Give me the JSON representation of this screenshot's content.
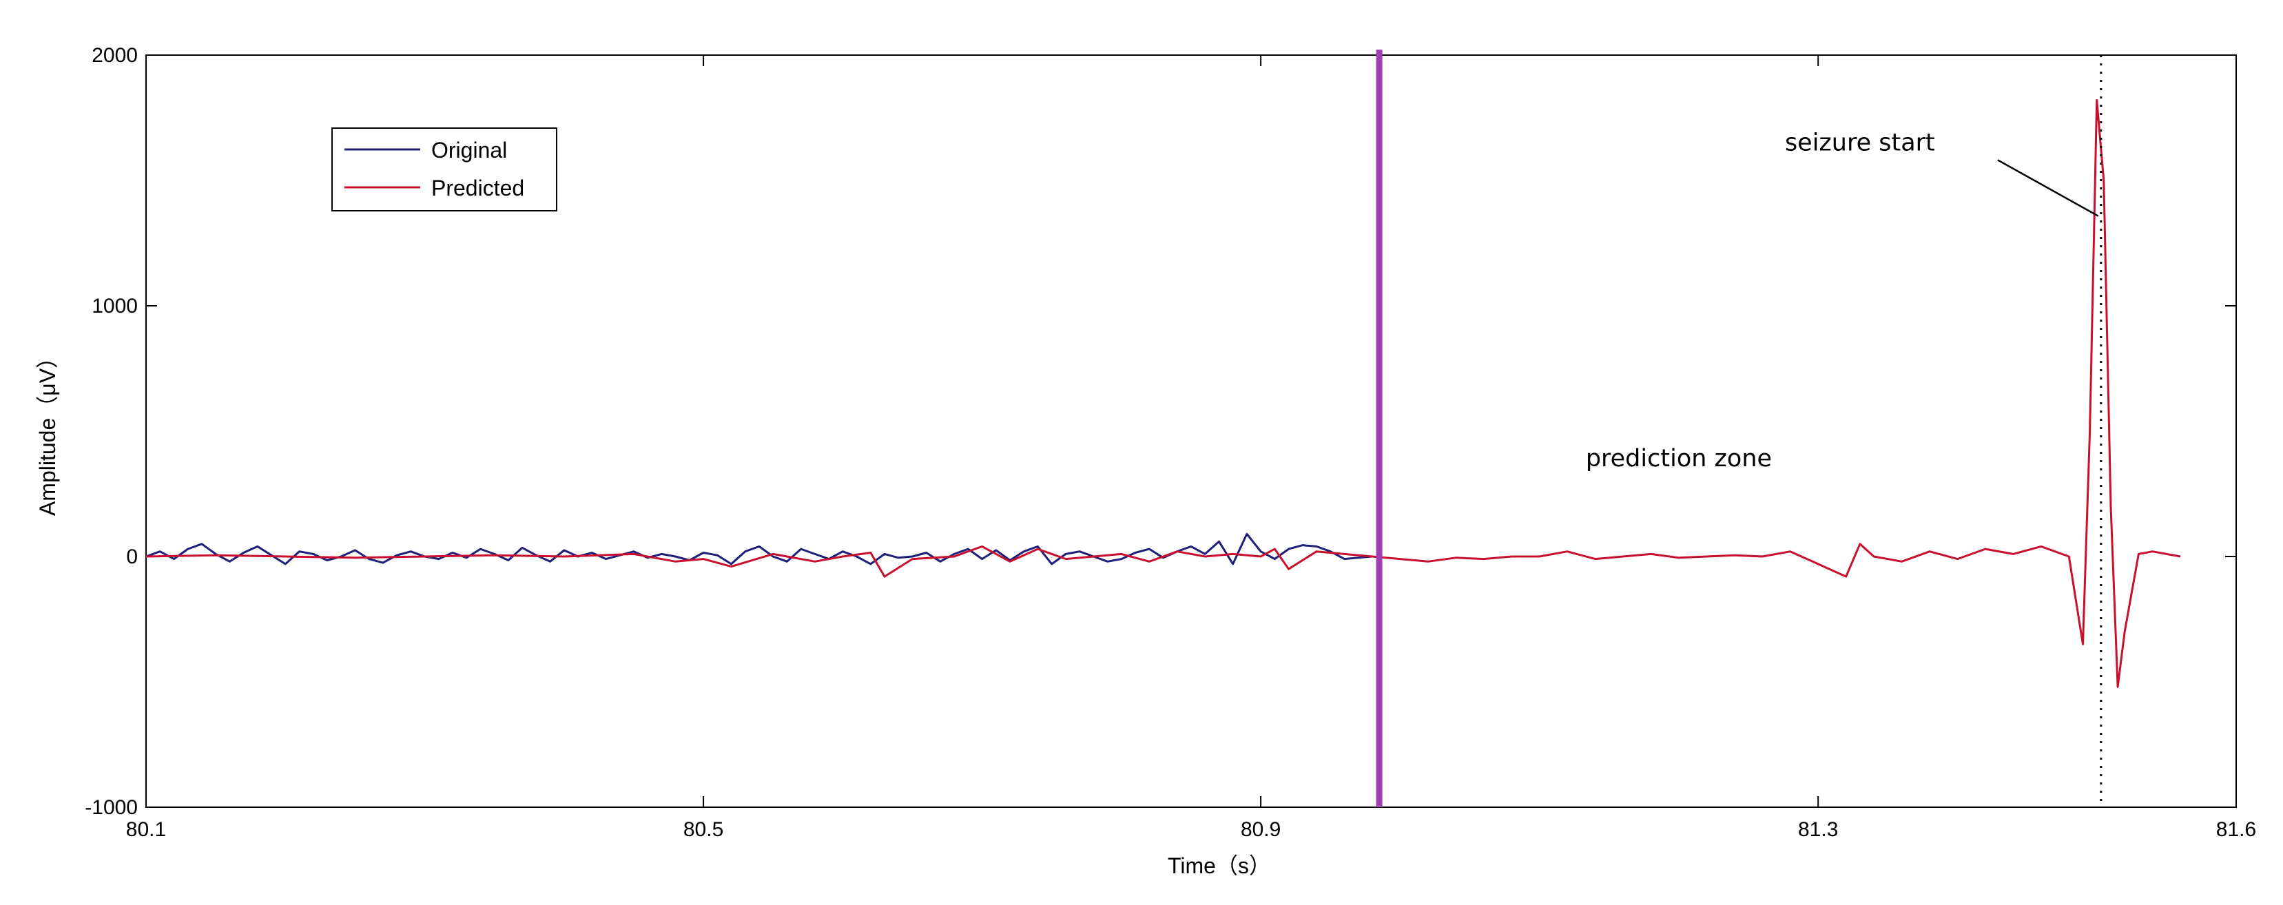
{
  "chart_data": {
    "type": "line",
    "xlabel": "Time（s）",
    "ylabel": "Amplitude（μV）",
    "xlim": [
      80.1,
      81.6
    ],
    "ylim": [
      -1000,
      2000
    ],
    "xticks": [
      80.1,
      80.5,
      80.9,
      81.3,
      81.6
    ],
    "xtick_labels": [
      "80.1",
      "80.5",
      "80.9",
      "81.3",
      "81.6"
    ],
    "yticks": [
      -1000,
      0,
      1000,
      2000
    ],
    "ytick_labels": [
      "-1000",
      "0",
      "1000",
      "2000"
    ],
    "grid": false,
    "legend_position": "top-left",
    "series": [
      {
        "name": "Original",
        "color": "#1f1f7a",
        "x": [
          80.1,
          80.11,
          80.12,
          80.13,
          80.14,
          80.15,
          80.16,
          80.17,
          80.18,
          80.19,
          80.2,
          80.21,
          80.22,
          80.23,
          80.24,
          80.25,
          80.26,
          80.27,
          80.28,
          80.29,
          80.3,
          80.31,
          80.32,
          80.33,
          80.34,
          80.35,
          80.36,
          80.37,
          80.38,
          80.39,
          80.4,
          80.41,
          80.42,
          80.43,
          80.44,
          80.45,
          80.46,
          80.47,
          80.48,
          80.49,
          80.5,
          80.51,
          80.52,
          80.53,
          80.54,
          80.55,
          80.56,
          80.57,
          80.58,
          80.59,
          80.6,
          80.61,
          80.62,
          80.63,
          80.64,
          80.65,
          80.66,
          80.67,
          80.68,
          80.69,
          80.7,
          80.71,
          80.72,
          80.73,
          80.74,
          80.75,
          80.76,
          80.77,
          80.78,
          80.79,
          80.8,
          80.81,
          80.82,
          80.83,
          80.84,
          80.85,
          80.86,
          80.87,
          80.88,
          80.89,
          80.9,
          80.91,
          80.92,
          80.93,
          80.94,
          80.95,
          80.96,
          80.97,
          80.98
        ],
        "y": [
          0,
          20,
          -10,
          30,
          50,
          10,
          -20,
          15,
          40,
          5,
          -30,
          20,
          10,
          -15,
          0,
          25,
          -10,
          -25,
          5,
          20,
          0,
          -10,
          15,
          -5,
          30,
          10,
          -15,
          35,
          5,
          -20,
          25,
          0,
          15,
          -10,
          5,
          20,
          -5,
          10,
          0,
          -15,
          15,
          5,
          -30,
          20,
          40,
          0,
          -20,
          30,
          10,
          -10,
          20,
          0,
          -30,
          10,
          -5,
          0,
          15,
          -20,
          10,
          30,
          -10,
          25,
          -15,
          20,
          40,
          -30,
          10,
          20,
          0,
          -20,
          -10,
          15,
          30,
          -5,
          20,
          40,
          10,
          60,
          -30,
          90,
          20,
          -10,
          30,
          45,
          40,
          20,
          -10,
          -5,
          0
        ]
      },
      {
        "name": "Predicted",
        "color": "#c8102e",
        "x": [
          80.1,
          80.15,
          80.2,
          80.25,
          80.3,
          80.35,
          80.4,
          80.45,
          80.48,
          80.5,
          80.52,
          80.55,
          80.58,
          80.6,
          80.62,
          80.63,
          80.65,
          80.68,
          80.7,
          80.72,
          80.74,
          80.76,
          80.78,
          80.8,
          80.82,
          80.84,
          80.86,
          80.88,
          80.9,
          80.91,
          80.92,
          80.94,
          80.96,
          80.98,
          81.0,
          81.02,
          81.04,
          81.06,
          81.08,
          81.1,
          81.12,
          81.14,
          81.16,
          81.18,
          81.2,
          81.22,
          81.24,
          81.26,
          81.28,
          81.3,
          81.32,
          81.33,
          81.34,
          81.36,
          81.38,
          81.4,
          81.42,
          81.44,
          81.46,
          81.48,
          81.49,
          81.495,
          81.5,
          81.505,
          81.51,
          81.515,
          81.52,
          81.53,
          81.54,
          81.55,
          81.56
        ],
        "y": [
          0,
          5,
          0,
          -5,
          0,
          5,
          0,
          10,
          -20,
          -10,
          -40,
          10,
          -20,
          0,
          15,
          -80,
          -10,
          0,
          40,
          -20,
          30,
          -10,
          0,
          10,
          -20,
          20,
          0,
          10,
          0,
          30,
          -50,
          20,
          10,
          0,
          -10,
          -20,
          -5,
          -10,
          0,
          0,
          20,
          -10,
          0,
          10,
          -5,
          0,
          5,
          0,
          20,
          -30,
          -80,
          50,
          0,
          -20,
          20,
          -10,
          30,
          10,
          40,
          0,
          -350,
          500,
          1820,
          1500,
          200,
          -520,
          -300,
          10,
          20,
          10,
          0
        ]
      }
    ],
    "vertical_lines": [
      {
        "x": 80.985,
        "style": "solid",
        "color": "#a040b0"
      },
      {
        "x": 81.503,
        "style": "dotted",
        "color": "#000000"
      }
    ],
    "annotations": [
      {
        "text": "prediction zone",
        "x": 81.2,
        "y": 360
      },
      {
        "text": "seizure start",
        "x": 81.33,
        "y": 1620,
        "arrow_to": {
          "x": 81.503,
          "y": 1380
        }
      }
    ]
  }
}
